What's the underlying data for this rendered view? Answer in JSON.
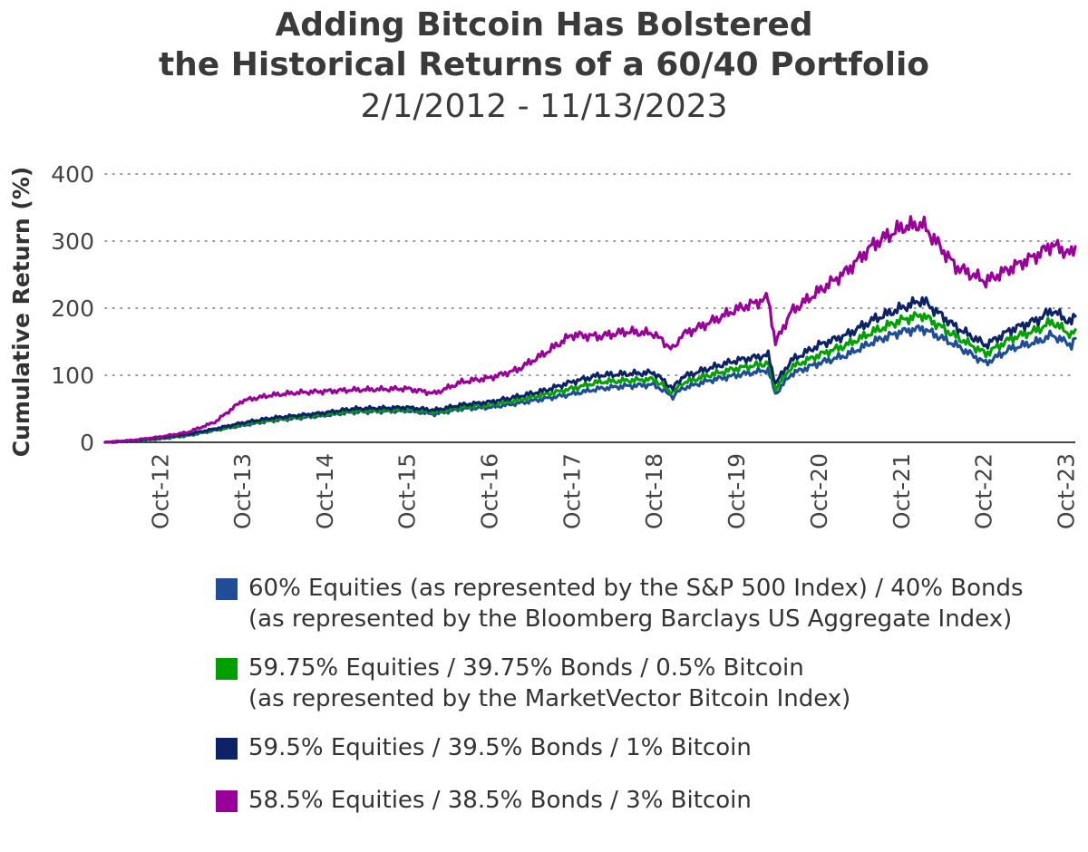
{
  "chart_data": {
    "type": "line",
    "title_lines": [
      "Adding Bitcoin Has Bolstered",
      "the Historical Returns of a 60/40 Portfolio"
    ],
    "subtitle": "2/1/2012 - 11/13/2023",
    "ylabel": "Cumulative Return (%)",
    "xlabel": "",
    "ylim": [
      0,
      400
    ],
    "yticks": [
      0,
      100,
      200,
      300,
      400
    ],
    "grid": "horizontal-dotted",
    "legend_placement": "bottom",
    "xlim": [
      "2012-02-01",
      "2023-11-13"
    ],
    "xticks": [
      {
        "date": "2012-10-01",
        "label": "Oct-12"
      },
      {
        "date": "2013-10-01",
        "label": "Oct-13"
      },
      {
        "date": "2014-10-01",
        "label": "Oct-14"
      },
      {
        "date": "2015-10-01",
        "label": "Oct-15"
      },
      {
        "date": "2016-10-01",
        "label": "Oct-16"
      },
      {
        "date": "2017-10-01",
        "label": "Oct-17"
      },
      {
        "date": "2018-10-01",
        "label": "Oct-18"
      },
      {
        "date": "2019-10-01",
        "label": "Oct-19"
      },
      {
        "date": "2020-10-01",
        "label": "Oct-20"
      },
      {
        "date": "2021-10-01",
        "label": "Oct-21"
      },
      {
        "date": "2022-10-01",
        "label": "Oct-22"
      },
      {
        "date": "2023-10-01",
        "label": "Oct-23"
      }
    ],
    "x": [
      "2012-02-01",
      "2012-06-01",
      "2012-10-01",
      "2013-02-01",
      "2013-06-01",
      "2013-10-01",
      "2014-02-01",
      "2014-06-01",
      "2014-10-01",
      "2015-02-01",
      "2015-06-01",
      "2015-10-01",
      "2016-02-01",
      "2016-06-01",
      "2016-10-01",
      "2017-02-01",
      "2017-06-01",
      "2017-10-01",
      "2018-02-01",
      "2018-06-01",
      "2018-10-01",
      "2018-12-24",
      "2019-02-01",
      "2019-06-01",
      "2019-10-01",
      "2020-02-20",
      "2020-03-23",
      "2020-06-01",
      "2020-10-01",
      "2021-02-01",
      "2021-06-01",
      "2021-10-01",
      "2022-01-03",
      "2022-06-01",
      "2022-10-12",
      "2023-02-01",
      "2023-06-01",
      "2023-08-01",
      "2023-10-27",
      "2023-11-13"
    ],
    "series": [
      {
        "name_lines": [
          "60% Equities (as represented by the S&P 500 Index) / 40% Bonds",
          "(as represented by the Bloomberg Barclays US Aggregate Index)"
        ],
        "color": "#1f4e96",
        "values": [
          0,
          2,
          5,
          10,
          18,
          25,
          32,
          36,
          40,
          45,
          46,
          47,
          42,
          50,
          52,
          58,
          65,
          72,
          80,
          84,
          86,
          68,
          80,
          92,
          100,
          108,
          72,
          102,
          118,
          130,
          150,
          165,
          170,
          145,
          118,
          140,
          150,
          160,
          145,
          155
        ]
      },
      {
        "name_lines": [
          "59.75% Equities / 39.75% Bonds / 0.5% Bitcoin",
          "(as represented by the MarketVector Bitcoin Index)"
        ],
        "color": "#00a000",
        "values": [
          0,
          2,
          6,
          11,
          19,
          27,
          34,
          38,
          42,
          47,
          48,
          49,
          45,
          53,
          56,
          63,
          71,
          80,
          90,
          92,
          94,
          74,
          88,
          100,
          110,
          118,
          80,
          112,
          130,
          145,
          165,
          182,
          190,
          158,
          132,
          155,
          168,
          180,
          160,
          168
        ]
      },
      {
        "name_lines": [
          "59.5% Equities / 39.5% Bonds / 1% Bitcoin"
        ],
        "color": "#0d2366",
        "values": [
          0,
          2,
          7,
          12,
          20,
          29,
          36,
          40,
          44,
          50,
          51,
          52,
          48,
          56,
          60,
          68,
          77,
          90,
          100,
          102,
          104,
          80,
          97,
          110,
          122,
          130,
          88,
          122,
          145,
          160,
          183,
          200,
          212,
          172,
          145,
          168,
          183,
          197,
          178,
          188
        ]
      },
      {
        "name_lines": [
          "58.5% Equities / 38.5% Bonds / 3% Bitcoin"
        ],
        "color": "#990099",
        "values": [
          0,
          3,
          8,
          15,
          30,
          62,
          70,
          74,
          76,
          78,
          79,
          80,
          73,
          90,
          96,
          108,
          132,
          160,
          158,
          165,
          162,
          138,
          160,
          178,
          198,
          215,
          148,
          195,
          225,
          255,
          295,
          320,
          325,
          262,
          240,
          260,
          280,
          295,
          280,
          292
        ]
      }
    ]
  }
}
